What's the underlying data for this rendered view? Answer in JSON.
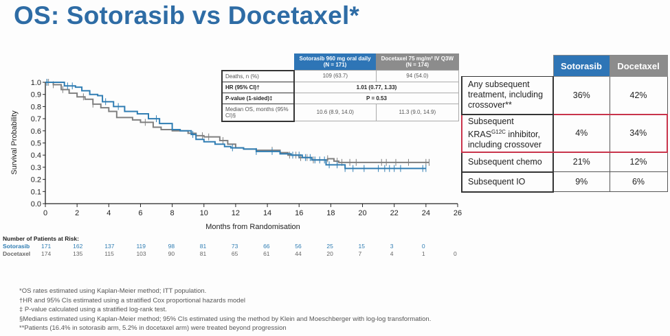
{
  "title": "OS: Sotorasib vs Docetaxel*",
  "summary_table": {
    "headers": [
      "Sotorasib 960 mg oral daily (N = 171)",
      "Docetaxel 75 mg/m² IV Q3W (N = 174)"
    ],
    "rows": [
      {
        "label": "Deaths, n (%)",
        "sotorasib": "109 (63.7)",
        "docetaxel": "94 (54.0)"
      },
      {
        "label": "HR (95% CI)†",
        "combined": "1.01 (0.77, 1.33)"
      },
      {
        "label": "P-value (1-sided)‡",
        "combined": "P = 0.53"
      },
      {
        "label": "Median OS, months (95% CI)§",
        "sotorasib": "10.6 (8.9, 14.0)",
        "docetaxel": "11.3 (9.0, 14.9)"
      }
    ]
  },
  "subsequent_table": {
    "headers": [
      "Sotorasib",
      "Docetaxel"
    ],
    "rows": [
      {
        "label": "Any subsequent treatment, including crossover**",
        "sotorasib": "36%",
        "docetaxel": "42%"
      },
      {
        "label_pre": "Subsequent KRAS",
        "label_sup": "G12C",
        "label_post": " inhibitor, including crossover",
        "sotorasib": "4%",
        "docetaxel": "34%",
        "highlighted": true
      },
      {
        "label": "Subsequent chemo",
        "sotorasib": "21%",
        "docetaxel": "12%"
      },
      {
        "label": "Subsequent IO",
        "sotorasib": "9%",
        "docetaxel": "6%"
      }
    ],
    "colors": {
      "sotorasib_header": "#2e75b6",
      "docetaxel_header": "#8c8c8c",
      "highlight_border": "#c8334a"
    }
  },
  "at_risk": {
    "heading": "Number of Patients at Risk:",
    "sotorasib": {
      "label": "Sotorasib",
      "values": [
        "171",
        "162",
        "137",
        "119",
        "98",
        "81",
        "73",
        "66",
        "56",
        "25",
        "15",
        "3",
        "0"
      ]
    },
    "docetaxel": {
      "label": "Docetaxel",
      "values": [
        "174",
        "135",
        "115",
        "103",
        "90",
        "81",
        "65",
        "61",
        "44",
        "20",
        "7",
        "4",
        "1",
        "0"
      ]
    }
  },
  "footnotes": [
    "*OS rates estimated using Kaplan-Meier method; ITT population.",
    "†HR and 95% CIs estimated using a stratified Cox proportional hazards model",
    "‡ P-value calculated using a stratified log-rank test.",
    "§Medians estimated using Kaplan-Meier method; 95% CIs estimated using the method by Klein and Moeschberger with log-log transformation.",
    "**Patients (16.4% in sotorasib arm, 5.2% in docetaxel arm) were treated beyond progression"
  ],
  "chart_data": {
    "type": "line",
    "subtype": "kaplan-meier step",
    "xlabel": "Months from Randomisation",
    "ylabel": "Survival Probability",
    "xlim": [
      0,
      26
    ],
    "ylim": [
      0,
      1.0
    ],
    "xticks": [
      "0",
      "2",
      "4",
      "6",
      "8",
      "10",
      "12",
      "14",
      "16",
      "18",
      "20",
      "22",
      "24",
      "26"
    ],
    "yticks": [
      "0.0",
      "0.1",
      "0.2",
      "0.3",
      "0.4",
      "0.5",
      "0.6",
      "0.7",
      "0.8",
      "0.9",
      "1.0"
    ],
    "grid": false,
    "series": [
      {
        "name": "Sotorasib",
        "color": "#2f7db3",
        "x": [
          0,
          0.8,
          1.2,
          1.9,
          2.3,
          2.8,
          3.3,
          3.6,
          4.3,
          5,
          5.8,
          6.5,
          7.2,
          8,
          8.5,
          9.2,
          9.5,
          10,
          10.7,
          11.3,
          11.7,
          12.5,
          13.3,
          14.8,
          15.5,
          16.2,
          16.8,
          17.7,
          18.9,
          24
        ],
        "y": [
          1.0,
          1.0,
          0.97,
          0.96,
          0.93,
          0.9,
          0.89,
          0.84,
          0.8,
          0.76,
          0.74,
          0.7,
          0.66,
          0.61,
          0.6,
          0.57,
          0.53,
          0.51,
          0.49,
          0.47,
          0.46,
          0.45,
          0.43,
          0.41,
          0.4,
          0.38,
          0.36,
          0.32,
          0.29,
          0.29
        ],
        "censored": [
          0.1,
          1.4,
          1.7,
          3.8,
          4.6,
          7,
          9.3,
          11.8,
          13.3,
          14.3,
          15.6,
          16,
          16.4,
          16.7,
          17,
          17.3,
          17.6,
          17.9,
          18.4,
          18.9,
          19.4,
          20.1,
          21,
          21.4,
          21.7,
          22,
          22.4,
          23.8,
          24
        ]
      },
      {
        "name": "Docetaxel",
        "color": "#7f7f7f",
        "x": [
          0,
          0.5,
          1,
          1.5,
          2,
          2.5,
          3,
          3.5,
          4,
          4.5,
          5.5,
          6,
          6.8,
          7.3,
          8,
          9,
          9.5,
          10,
          11,
          11.5,
          12,
          12.5,
          13.3,
          14.8,
          15.3,
          16,
          16.8,
          17.8,
          18.2,
          18.5,
          24.2
        ],
        "y": [
          1.0,
          0.98,
          0.94,
          0.91,
          0.88,
          0.86,
          0.82,
          0.79,
          0.76,
          0.71,
          0.69,
          0.67,
          0.63,
          0.61,
          0.6,
          0.58,
          0.56,
          0.55,
          0.52,
          0.49,
          0.46,
          0.45,
          0.44,
          0.42,
          0.4,
          0.38,
          0.36,
          0.37,
          0.35,
          0.34,
          0.34
        ],
        "censored": [
          0.1,
          0.2,
          0.5,
          1.1,
          2.4,
          3,
          6.3,
          9.9,
          10.3,
          11.2,
          14.3,
          15.4,
          15.8,
          16.1,
          16.5,
          16.9,
          17.8,
          18.4,
          18.7,
          19.2,
          19.6,
          21.2,
          21.5,
          22.1,
          22.9,
          24,
          24.2
        ]
      }
    ]
  }
}
